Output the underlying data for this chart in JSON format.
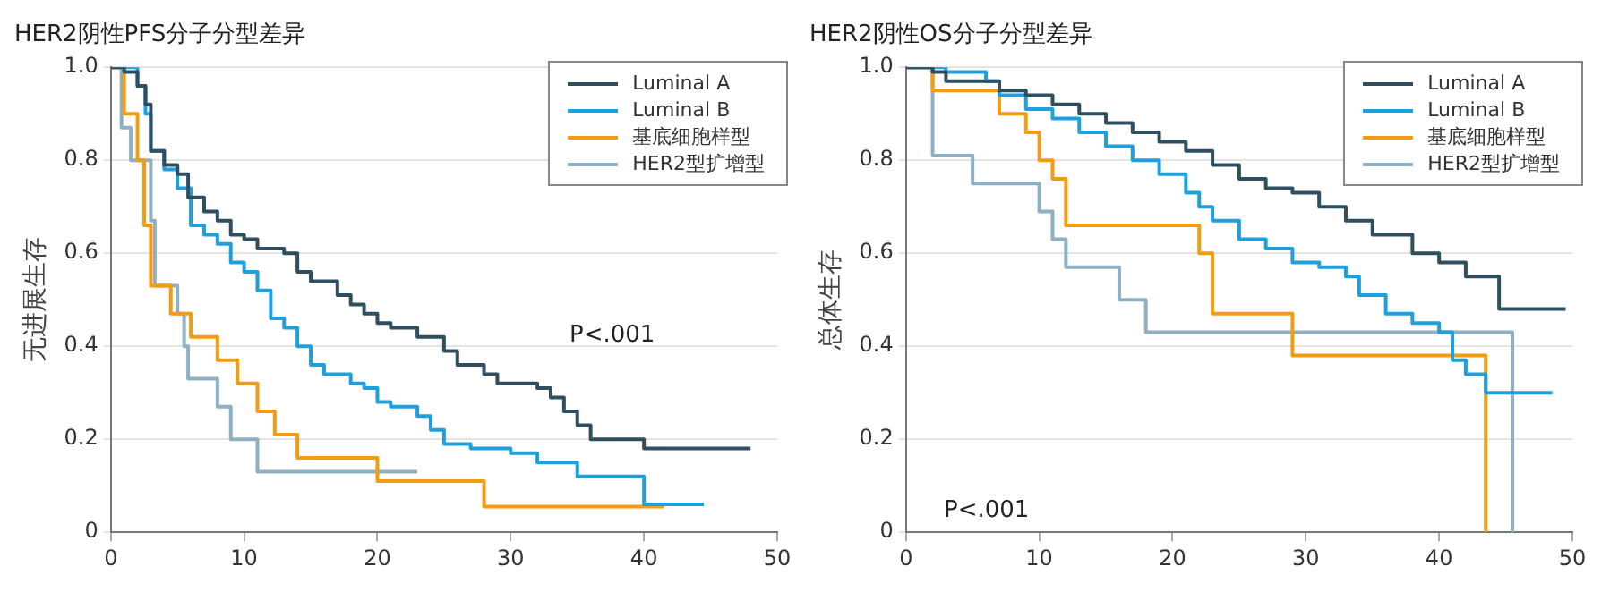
{
  "chart_data": [
    {
      "type": "step",
      "title": "HER2阴性PFS分子分型差异",
      "ylabel": "无进展生存",
      "annotations": [
        "P<.001"
      ],
      "legend": "top right",
      "grid": "y",
      "marker": "none",
      "line_style": "solid",
      "xlim": [
        0,
        50
      ],
      "xticks": [
        0,
        10,
        20,
        30,
        40,
        50
      ],
      "ylim": [
        0,
        1
      ],
      "yticks": [
        0,
        {
          "value": 0.2,
          "label": "0.2"
        },
        {
          "value": 0.4,
          "label": "0.4"
        },
        {
          "value": 0.6,
          "label": "0.6"
        },
        {
          "value": 0.8,
          "label": "0.8"
        },
        {
          "value": 1,
          "label": "1.0"
        }
      ],
      "series": [
        {
          "name": "Luminal A",
          "color": "#2f4f5f",
          "x": [
            0,
            1,
            2,
            2.6,
            3,
            4,
            5,
            5.8,
            7,
            8,
            9,
            10,
            11,
            13,
            14,
            15,
            17,
            18,
            19,
            20,
            21,
            23,
            25,
            26,
            28,
            29,
            32,
            33,
            34,
            35,
            36,
            40,
            48
          ],
          "values": [
            1,
            0.99,
            0.96,
            0.92,
            0.82,
            0.79,
            0.77,
            0.72,
            0.69,
            0.67,
            0.64,
            0.63,
            0.61,
            0.6,
            0.56,
            0.54,
            0.51,
            0.49,
            0.47,
            0.45,
            0.44,
            0.42,
            0.39,
            0.36,
            0.34,
            0.32,
            0.31,
            0.29,
            0.26,
            0.23,
            0.2,
            0.18,
            0.18
          ]
        },
        {
          "name": "Luminal B",
          "color": "#1ea0dc",
          "x": [
            0,
            2,
            2.6,
            3,
            4,
            5,
            6,
            7,
            8,
            9,
            10,
            11,
            12,
            13,
            14,
            15,
            16,
            18,
            19,
            20,
            21,
            23,
            24,
            25,
            27,
            30,
            32,
            35,
            40,
            44.5
          ],
          "values": [
            1,
            0.96,
            0.9,
            0.82,
            0.78,
            0.74,
            0.66,
            0.64,
            0.62,
            0.58,
            0.56,
            0.52,
            0.46,
            0.44,
            0.4,
            0.36,
            0.34,
            0.32,
            0.31,
            0.28,
            0.27,
            0.25,
            0.22,
            0.19,
            0.18,
            0.17,
            0.15,
            0.12,
            0.06,
            0.06
          ]
        },
        {
          "name": "基底细胞样型",
          "color": "#f39c12",
          "x": [
            0,
            1,
            2,
            2.5,
            3,
            4.5,
            6,
            8,
            9.5,
            11,
            12.3,
            14,
            20,
            28,
            41.5
          ],
          "values": [
            1,
            0.9,
            0.8,
            0.66,
            0.53,
            0.47,
            0.42,
            0.37,
            0.32,
            0.26,
            0.21,
            0.16,
            0.11,
            0.055,
            0.055
          ]
        },
        {
          "name": "HER2型扩增型",
          "color": "#8fb0c0",
          "x": [
            0,
            0.8,
            1.5,
            3,
            3.3,
            5,
            5.5,
            5.8,
            8,
            9,
            11,
            23
          ],
          "values": [
            1,
            0.87,
            0.8,
            0.67,
            0.53,
            0.47,
            0.4,
            0.33,
            0.27,
            0.2,
            0.13,
            0.13
          ]
        }
      ]
    },
    {
      "type": "step",
      "title": "HER2阴性OS分子分型差异",
      "ylabel": "总体生存",
      "annotations": [
        "P<.001"
      ],
      "legend": "top right",
      "grid": "y",
      "marker": "none",
      "line_style": "solid",
      "xlim": [
        0,
        50
      ],
      "xticks": [
        0,
        10,
        20,
        30,
        40,
        50
      ],
      "ylim": [
        0,
        1
      ],
      "yticks": [
        0,
        {
          "value": 0.2,
          "label": "0.2"
        },
        {
          "value": 0.4,
          "label": "0.4"
        },
        {
          "value": 0.6,
          "label": "0.6"
        },
        {
          "value": 0.8,
          "label": "0.8"
        },
        {
          "value": 1,
          "label": "1.0"
        }
      ],
      "series": [
        {
          "name": "Luminal A",
          "color": "#2f4f5f",
          "x": [
            0,
            2,
            3,
            7,
            9,
            11,
            13,
            15,
            17,
            19,
            21,
            23,
            25,
            27,
            29,
            31,
            33,
            35,
            38,
            40,
            42,
            44.5,
            49.5
          ],
          "values": [
            1,
            0.99,
            0.97,
            0.95,
            0.94,
            0.92,
            0.9,
            0.88,
            0.86,
            0.84,
            0.82,
            0.79,
            0.76,
            0.74,
            0.73,
            0.7,
            0.67,
            0.64,
            0.6,
            0.58,
            0.55,
            0.48,
            0.48
          ]
        },
        {
          "name": "Luminal B",
          "color": "#1ea0dc",
          "x": [
            0,
            3,
            6,
            7,
            9,
            11,
            13,
            15,
            17,
            19,
            21,
            22,
            23,
            25,
            27,
            29,
            31,
            33,
            34,
            36,
            38,
            40,
            41,
            42,
            43.5,
            48.5
          ],
          "values": [
            1,
            0.99,
            0.97,
            0.94,
            0.91,
            0.89,
            0.86,
            0.83,
            0.8,
            0.77,
            0.73,
            0.7,
            0.67,
            0.63,
            0.61,
            0.58,
            0.57,
            0.55,
            0.51,
            0.47,
            0.45,
            0.43,
            0.37,
            0.34,
            0.3,
            0.3
          ]
        },
        {
          "name": "基底细胞样型",
          "color": "#f39c12",
          "x": [
            0,
            2,
            7,
            9,
            10,
            11,
            12,
            22,
            23,
            29,
            43.5
          ],
          "values": [
            1,
            0.95,
            0.9,
            0.86,
            0.8,
            0.76,
            0.66,
            0.6,
            0.47,
            0.38,
            0
          ]
        },
        {
          "name": "HER2型扩增型",
          "color": "#8fb0c0",
          "x": [
            0,
            2,
            5,
            10,
            11,
            12,
            16,
            18,
            45.5
          ],
          "values": [
            1,
            0.81,
            0.75,
            0.69,
            0.63,
            0.57,
            0.5,
            0.43,
            0
          ]
        }
      ]
    }
  ]
}
